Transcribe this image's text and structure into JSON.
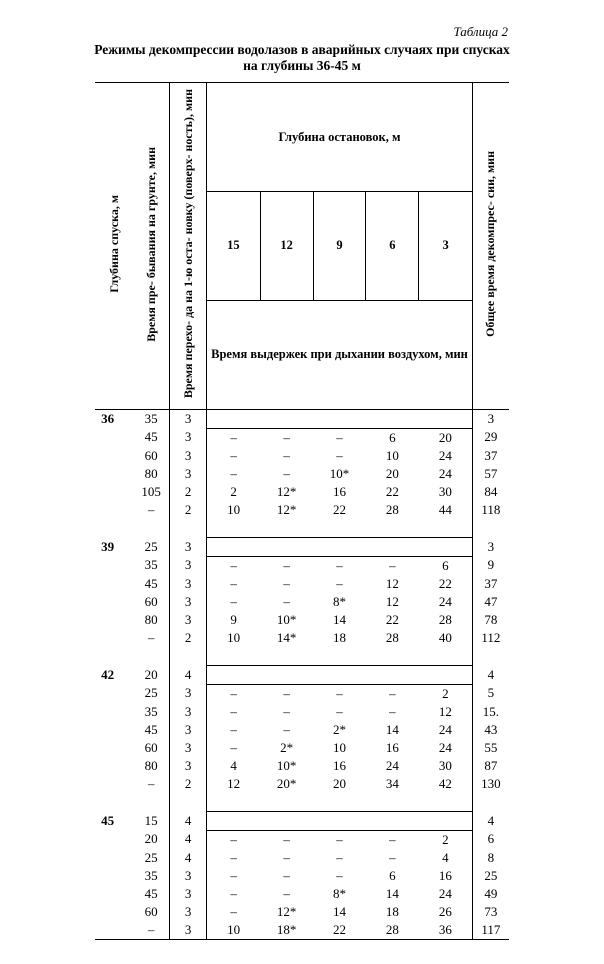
{
  "table_label": "Таблица 2",
  "title_l1": "Режимы декомпрессии водолазов в аварийных случаях при спусках",
  "title_l2": "на глубины 36-45 м",
  "headers": {
    "col1": "Глубина спуска, м",
    "col2": "Время пре- бывания на грунте, мин",
    "col3": "Время перехо- да на 1-ю оста- новку (поверх- ность), мин",
    "stops_title": "Глубина остановок, м",
    "stops": [
      "15",
      "12",
      "9",
      "6",
      "3"
    ],
    "air_title": "Время выдержек при дыхании воздухом, мин",
    "col_total": "Общее время декомпрес- сии, мин"
  },
  "groups": [
    {
      "depth": "36",
      "rows": [
        {
          "t": "35",
          "tr": "3",
          "s": [
            "",
            "",
            "",
            "",
            ""
          ],
          "tot": "3",
          "sep": false
        },
        {
          "t": "45",
          "tr": "3",
          "s": [
            "–",
            "–",
            "–",
            "6",
            "20"
          ],
          "tot": "29",
          "sep": true
        },
        {
          "t": "60",
          "tr": "3",
          "s": [
            "–",
            "–",
            "–",
            "10",
            "24"
          ],
          "tot": "37",
          "sep": false
        },
        {
          "t": "80",
          "tr": "3",
          "s": [
            "–",
            "–",
            "10*",
            "20",
            "24"
          ],
          "tot": "57",
          "sep": false
        },
        {
          "t": "105",
          "tr": "2",
          "s": [
            "2",
            "12*",
            "16",
            "22",
            "30"
          ],
          "tot": "84",
          "sep": false
        },
        {
          "t": "–",
          "tr": "2",
          "s": [
            "10",
            "12*",
            "22",
            "28",
            "44"
          ],
          "tot": "118",
          "sep": false
        }
      ]
    },
    {
      "depth": "39",
      "rows": [
        {
          "t": "25",
          "tr": "3",
          "s": [
            "",
            "",
            "",
            "",
            ""
          ],
          "tot": "3",
          "sep": false
        },
        {
          "t": "35",
          "tr": "3",
          "s": [
            "–",
            "–",
            "–",
            "–",
            "6"
          ],
          "tot": "9",
          "sep": true
        },
        {
          "t": "45",
          "tr": "3",
          "s": [
            "–",
            "–",
            "–",
            "12",
            "22"
          ],
          "tot": "37",
          "sep": false
        },
        {
          "t": "60",
          "tr": "3",
          "s": [
            "–",
            "–",
            "8*",
            "12",
            "24"
          ],
          "tot": "47",
          "sep": false
        },
        {
          "t": "80",
          "tr": "3",
          "s": [
            "9",
            "10*",
            "14",
            "22",
            "28"
          ],
          "tot": "78",
          "sep": false
        },
        {
          "t": "–",
          "tr": "2",
          "s": [
            "10",
            "14*",
            "18",
            "28",
            "40"
          ],
          "tot": "112",
          "sep": false
        }
      ]
    },
    {
      "depth": "42",
      "rows": [
        {
          "t": "20",
          "tr": "4",
          "s": [
            "",
            "",
            "",
            "",
            ""
          ],
          "tot": "4",
          "sep": false
        },
        {
          "t": "25",
          "tr": "3",
          "s": [
            "–",
            "–",
            "–",
            "–",
            "2"
          ],
          "tot": "5",
          "sep": true
        },
        {
          "t": "35",
          "tr": "3",
          "s": [
            "–",
            "–",
            "–",
            "–",
            "12"
          ],
          "tot": "15.",
          "sep": false
        },
        {
          "t": "45",
          "tr": "3",
          "s": [
            "–",
            "–",
            "2*",
            "14",
            "24"
          ],
          "tot": "43",
          "sep": false
        },
        {
          "t": "60",
          "tr": "3",
          "s": [
            "–",
            "2*",
            "10",
            "16",
            "24"
          ],
          "tot": "55",
          "sep": false
        },
        {
          "t": "80",
          "tr": "3",
          "s": [
            "4",
            "10*",
            "16",
            "24",
            "30"
          ],
          "tot": "87",
          "sep": false
        },
        {
          "t": "–",
          "tr": "2",
          "s": [
            "12",
            "20*",
            "20",
            "34",
            "42"
          ],
          "tot": "130",
          "sep": false
        }
      ]
    },
    {
      "depth": "45",
      "rows": [
        {
          "t": "15",
          "tr": "4",
          "s": [
            "",
            "",
            "",
            "",
            ""
          ],
          "tot": "4",
          "sep": false
        },
        {
          "t": "20",
          "tr": "4",
          "s": [
            "–",
            "–",
            "–",
            "–",
            "2"
          ],
          "tot": "6",
          "sep": true
        },
        {
          "t": "25",
          "tr": "4",
          "s": [
            "–",
            "–",
            "–",
            "–",
            "4"
          ],
          "tot": "8",
          "sep": false
        },
        {
          "t": "35",
          "tr": "3",
          "s": [
            "–",
            "–",
            "–",
            "6",
            "16"
          ],
          "tot": "25",
          "sep": false
        },
        {
          "t": "45",
          "tr": "3",
          "s": [
            "–",
            "–",
            "8*",
            "14",
            "24"
          ],
          "tot": "49",
          "sep": false
        },
        {
          "t": "60",
          "tr": "3",
          "s": [
            "–",
            "12*",
            "14",
            "18",
            "26"
          ],
          "tot": "73",
          "sep": false
        },
        {
          "t": "–",
          "tr": "3",
          "s": [
            "10",
            "18*",
            "22",
            "28",
            "36"
          ],
          "tot": "117",
          "sep": false
        }
      ]
    }
  ]
}
